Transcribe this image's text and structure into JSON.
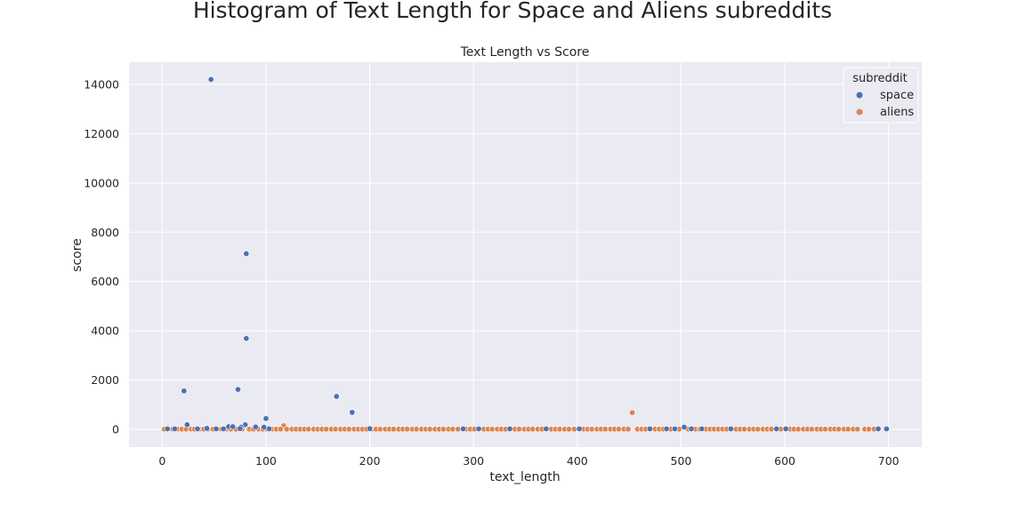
{
  "figure_title": "Histogram of Text Length for Space and Aliens subreddits",
  "chart_data": {
    "type": "scatter",
    "title": "Text Length vs Score",
    "xlabel": "text_length",
    "ylabel": "score",
    "xlim": [
      -32,
      732
    ],
    "ylim": [
      -720,
      14900
    ],
    "xticks": [
      0,
      100,
      200,
      300,
      400,
      500,
      600,
      700
    ],
    "yticks": [
      0,
      2000,
      4000,
      6000,
      8000,
      10000,
      12000,
      14000
    ],
    "grid": true,
    "legend": {
      "title": "subreddit",
      "placement": "top-right"
    },
    "series": [
      {
        "name": "space",
        "color": "#4c72b0",
        "points": [
          [
            47,
            14200
          ],
          [
            81,
            7130
          ],
          [
            81,
            3690
          ],
          [
            21,
            1560
          ],
          [
            73,
            1620
          ],
          [
            168,
            1340
          ],
          [
            183,
            690
          ],
          [
            100,
            440
          ],
          [
            24,
            190
          ],
          [
            80,
            190
          ],
          [
            64,
            110
          ],
          [
            68,
            110
          ],
          [
            76,
            90
          ],
          [
            90,
            100
          ],
          [
            98,
            90
          ],
          [
            103,
            20
          ],
          [
            43,
            40
          ],
          [
            52,
            20
          ],
          [
            59,
            20
          ],
          [
            75,
            30
          ],
          [
            200,
            30
          ],
          [
            290,
            20
          ],
          [
            305,
            20
          ],
          [
            335,
            20
          ],
          [
            370,
            20
          ],
          [
            402,
            20
          ],
          [
            470,
            20
          ],
          [
            486,
            20
          ],
          [
            494,
            20
          ],
          [
            503,
            90
          ],
          [
            510,
            20
          ],
          [
            520,
            20
          ],
          [
            548,
            20
          ],
          [
            592,
            20
          ],
          [
            601,
            20
          ],
          [
            690,
            20
          ],
          [
            698,
            20
          ],
          [
            5,
            20
          ],
          [
            12,
            20
          ],
          [
            34,
            20
          ]
        ]
      },
      {
        "name": "aliens",
        "color": "#dd8452",
        "points": [
          [
            453,
            680
          ],
          [
            117,
            150
          ],
          [
            2,
            10
          ],
          [
            6,
            10
          ],
          [
            10,
            10
          ],
          [
            15,
            10
          ],
          [
            19,
            10
          ],
          [
            23,
            10
          ],
          [
            28,
            10
          ],
          [
            31,
            10
          ],
          [
            36,
            10
          ],
          [
            40,
            10
          ],
          [
            44,
            10
          ],
          [
            49,
            10
          ],
          [
            53,
            10
          ],
          [
            57,
            10
          ],
          [
            62,
            10
          ],
          [
            66,
            10
          ],
          [
            71,
            10
          ],
          [
            77,
            10
          ],
          [
            84,
            10
          ],
          [
            88,
            10
          ],
          [
            93,
            10
          ],
          [
            97,
            10
          ],
          [
            101,
            10
          ],
          [
            106,
            10
          ],
          [
            110,
            10
          ],
          [
            114,
            10
          ],
          [
            120,
            10
          ],
          [
            125,
            10
          ],
          [
            129,
            10
          ],
          [
            133,
            10
          ],
          [
            137,
            10
          ],
          [
            141,
            10
          ],
          [
            146,
            10
          ],
          [
            150,
            10
          ],
          [
            154,
            10
          ],
          [
            158,
            10
          ],
          [
            163,
            10
          ],
          [
            167,
            10
          ],
          [
            172,
            10
          ],
          [
            176,
            10
          ],
          [
            180,
            10
          ],
          [
            185,
            10
          ],
          [
            189,
            10
          ],
          [
            193,
            10
          ],
          [
            197,
            10
          ],
          [
            202,
            10
          ],
          [
            206,
            10
          ],
          [
            210,
            10
          ],
          [
            215,
            10
          ],
          [
            219,
            10
          ],
          [
            223,
            10
          ],
          [
            228,
            10
          ],
          [
            232,
            10
          ],
          [
            236,
            10
          ],
          [
            241,
            10
          ],
          [
            245,
            10
          ],
          [
            250,
            10
          ],
          [
            254,
            10
          ],
          [
            258,
            10
          ],
          [
            263,
            10
          ],
          [
            267,
            10
          ],
          [
            271,
            10
          ],
          [
            276,
            10
          ],
          [
            280,
            10
          ],
          [
            285,
            10
          ],
          [
            293,
            10
          ],
          [
            297,
            10
          ],
          [
            301,
            10
          ],
          [
            310,
            10
          ],
          [
            314,
            10
          ],
          [
            318,
            10
          ],
          [
            323,
            10
          ],
          [
            327,
            10
          ],
          [
            331,
            10
          ],
          [
            340,
            10
          ],
          [
            344,
            10
          ],
          [
            349,
            10
          ],
          [
            353,
            10
          ],
          [
            357,
            10
          ],
          [
            362,
            10
          ],
          [
            366,
            10
          ],
          [
            375,
            10
          ],
          [
            379,
            10
          ],
          [
            383,
            10
          ],
          [
            388,
            10
          ],
          [
            392,
            10
          ],
          [
            397,
            10
          ],
          [
            406,
            10
          ],
          [
            410,
            10
          ],
          [
            414,
            10
          ],
          [
            419,
            10
          ],
          [
            423,
            10
          ],
          [
            427,
            10
          ],
          [
            432,
            10
          ],
          [
            436,
            10
          ],
          [
            440,
            10
          ],
          [
            445,
            10
          ],
          [
            449,
            10
          ],
          [
            458,
            10
          ],
          [
            462,
            10
          ],
          [
            466,
            10
          ],
          [
            475,
            10
          ],
          [
            479,
            10
          ],
          [
            483,
            10
          ],
          [
            490,
            10
          ],
          [
            498,
            10
          ],
          [
            507,
            10
          ],
          [
            514,
            10
          ],
          [
            518,
            10
          ],
          [
            524,
            10
          ],
          [
            528,
            10
          ],
          [
            532,
            10
          ],
          [
            536,
            10
          ],
          [
            540,
            10
          ],
          [
            544,
            10
          ],
          [
            553,
            10
          ],
          [
            557,
            10
          ],
          [
            561,
            10
          ],
          [
            566,
            10
          ],
          [
            570,
            10
          ],
          [
            574,
            10
          ],
          [
            579,
            10
          ],
          [
            583,
            10
          ],
          [
            587,
            10
          ],
          [
            596,
            10
          ],
          [
            605,
            10
          ],
          [
            609,
            10
          ],
          [
            613,
            10
          ],
          [
            618,
            10
          ],
          [
            622,
            10
          ],
          [
            626,
            10
          ],
          [
            631,
            10
          ],
          [
            635,
            10
          ],
          [
            639,
            10
          ],
          [
            644,
            10
          ],
          [
            648,
            10
          ],
          [
            652,
            10
          ],
          [
            657,
            10
          ],
          [
            661,
            10
          ],
          [
            666,
            10
          ],
          [
            670,
            10
          ],
          [
            677,
            10
          ],
          [
            681,
            10
          ],
          [
            686,
            10
          ]
        ]
      }
    ]
  }
}
